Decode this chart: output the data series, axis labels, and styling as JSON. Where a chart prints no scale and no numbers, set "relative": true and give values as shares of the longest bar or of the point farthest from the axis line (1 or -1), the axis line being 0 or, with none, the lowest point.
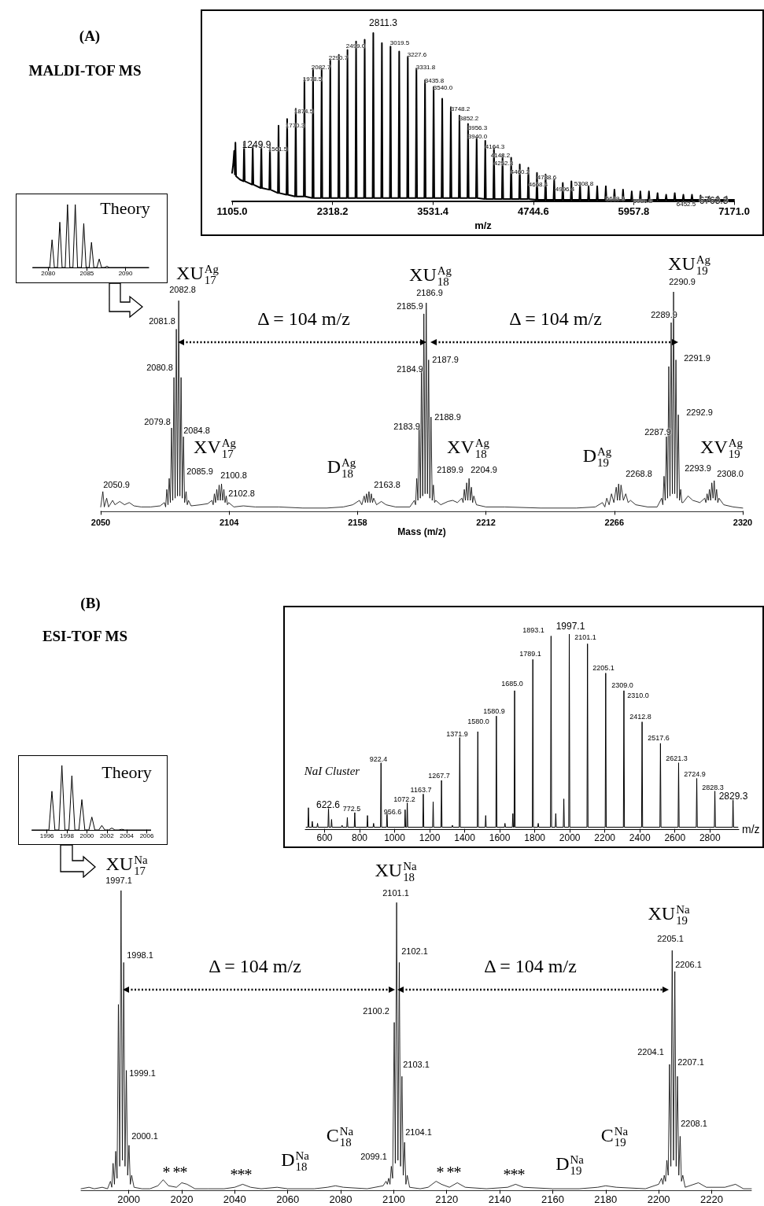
{
  "chart_data": [
    {
      "type": "line",
      "xlabel": "Mass (m/z)",
      "relative": true,
      "xlim": [
        2050,
        2320
      ],
      "xticks": [
        2050,
        2104,
        2158,
        2212,
        2266,
        2320
      ],
      "series": [
        {
          "color": "#000000",
          "x": [
            2050,
            2050.9,
            2051.5,
            2052.5,
            2053.3,
            2055,
            2056,
            2058,
            2060,
            2062,
            2064,
            2067,
            2071,
            2075,
            2076.8,
            2077.3,
            2077.8,
            2078.3,
            2078.8,
            2079.3,
            2079.8,
            2080.3,
            2080.8,
            2081.3,
            2081.8,
            2082.3,
            2082.8,
            2083.3,
            2083.8,
            2084.3,
            2084.8,
            2085.3,
            2085.9,
            2086.4,
            2086.9,
            2088,
            2092,
            2095,
            2096.8,
            2097.3,
            2097.8,
            2098.3,
            2098.8,
            2099.3,
            2099.8,
            2100.3,
            2100.8,
            2101.3,
            2101.8,
            2102.3,
            2102.8,
            2103.3,
            2103.8,
            2106,
            2110,
            2115,
            2125,
            2135,
            2145,
            2152,
            2156,
            2158.8,
            2159.8,
            2160.8,
            2161.3,
            2161.8,
            2162.3,
            2162.8,
            2163.3,
            2163.8,
            2164.3,
            2164.8,
            2166,
            2168,
            2170,
            2174,
            2180,
            2181.9,
            2182.4,
            2182.9,
            2183.4,
            2183.9,
            2184.4,
            2184.9,
            2185.4,
            2185.9,
            2186.4,
            2186.9,
            2187.4,
            2187.9,
            2188.4,
            2188.9,
            2189.4,
            2189.9,
            2190.4,
            2190.9,
            2193,
            2196,
            2198,
            2200,
            2201.9,
            2202.4,
            2202.9,
            2203.4,
            2203.9,
            2204.4,
            2204.9,
            2205.4,
            2205.9,
            2206.4,
            2206.9,
            2208,
            2212,
            2220,
            2235,
            2250,
            2258,
            2261,
            2262,
            2262.8,
            2263.8,
            2264.8,
            2265.8,
            2266.8,
            2267.3,
            2267.8,
            2268.3,
            2268.8,
            2269.8,
            2270.8,
            2271.8,
            2272.8,
            2275,
            2280,
            2284,
            2285.9,
            2286.4,
            2286.9,
            2287.4,
            2287.9,
            2288.4,
            2288.9,
            2289.4,
            2289.9,
            2290.4,
            2290.9,
            2291.4,
            2291.9,
            2292.4,
            2292.9,
            2293.4,
            2293.9,
            2294.4,
            2294.9,
            2297,
            2299,
            2302,
            2304,
            2304.5,
            2305,
            2305.5,
            2306,
            2306.5,
            2307,
            2307.5,
            2308,
            2308.5,
            2309,
            2309.5,
            2310,
            2312,
            2316,
            2320
          ],
          "values": [
            0.02,
            0.09,
            0.02,
            0.06,
            0.02,
            0.05,
            0.03,
            0.045,
            0.03,
            0.04,
            0.025,
            0.02,
            0.02,
            0.025,
            0.04,
            0.02,
            0.1,
            0.03,
            0.15,
            0.04,
            0.38,
            0.05,
            0.61,
            0.06,
            0.83,
            0.07,
            0.96,
            0.07,
            0.61,
            0.06,
            0.34,
            0.04,
            0.09,
            0.03,
            0.05,
            0.025,
            0.03,
            0.035,
            0.05,
            0.03,
            0.08,
            0.04,
            0.1,
            0.05,
            0.12,
            0.05,
            0.125,
            0.05,
            0.1,
            0.04,
            0.07,
            0.03,
            0.04,
            0.02,
            0.025,
            0.02,
            0.02,
            0.015,
            0.015,
            0.02,
            0.03,
            0.05,
            0.03,
            0.07,
            0.04,
            0.08,
            0.04,
            0.09,
            0.04,
            0.08,
            0.04,
            0.06,
            0.03,
            0.045,
            0.03,
            0.02,
            0.02,
            0.05,
            0.03,
            0.15,
            0.05,
            0.4,
            0.06,
            0.65,
            0.07,
            0.9,
            0.08,
            0.95,
            0.08,
            0.69,
            0.06,
            0.43,
            0.05,
            0.12,
            0.04,
            0.05,
            0.03,
            0.045,
            0.05,
            0.04,
            0.06,
            0.04,
            0.1,
            0.05,
            0.13,
            0.05,
            0.15,
            0.05,
            0.11,
            0.04,
            0.07,
            0.03,
            0.02,
            0.02,
            0.015,
            0.015,
            0.02,
            0.04,
            0.02,
            0.06,
            0.03,
            0.08,
            0.04,
            0.11,
            0.05,
            0.125,
            0.05,
            0.12,
            0.05,
            0.08,
            0.04,
            0.05,
            0.03,
            0.02,
            0.02,
            0.06,
            0.03,
            0.16,
            0.05,
            0.34,
            0.06,
            0.66,
            0.07,
            0.86,
            0.08,
            1.0,
            0.08,
            0.69,
            0.06,
            0.44,
            0.05,
            0.1,
            0.04,
            0.04,
            0.07,
            0.05,
            0.04,
            0.06,
            0.04,
            0.08,
            0.05,
            0.1,
            0.05,
            0.13,
            0.06,
            0.14,
            0.05,
            0.1,
            0.04,
            0.06,
            0.03,
            0.02,
            0.015
          ]
        }
      ],
      "annotations": [
        "XU$^{Ag}$$_{17}$",
        "XU$^{Ag}$$_{18}$",
        "XU$^{Ag}$$_{19}$",
        "Δ = 104 m/z",
        "Δ = 104 m/z",
        "XV$^{Ag}$$_{17}$",
        "D$^{Ag}$$_{18}$",
        "XV$^{Ag}$$_{18}$",
        "D$^{Ag}$$_{19}$",
        "XV$^{Ag}$$_{19}$",
        "2050.9",
        "2082.8",
        "2081.8",
        "2080.8",
        "2079.8",
        "2084.8",
        "2085.9",
        "2100.8",
        "2102.8",
        "2163.8",
        "2186.9",
        "2185.9",
        "2184.9",
        "2183.9",
        "2187.9",
        "2188.9",
        "2189.9",
        "2204.9",
        "2268.8",
        "2290.9",
        "2289.9",
        "2291.9",
        "2292.9",
        "2287.9",
        "2293.9",
        "2308.0",
        "(A)",
        "MALDI-TOF MS"
      ]
    },
    {
      "type": "line",
      "xlabel": "m/z",
      "relative": true,
      "xlim": [
        1105,
        7171
      ],
      "xticks": [
        {
          "value": 1105,
          "label": "1105.0"
        },
        {
          "value": 2318.2,
          "label": "2318.2"
        },
        {
          "value": 3531.4,
          "label": "3531.4"
        },
        {
          "value": 4744.6,
          "label": "4744.6"
        },
        {
          "value": 5957.8,
          "label": "5957.8"
        },
        {
          "value": 7171,
          "label": "7171.0"
        }
      ],
      "series": [
        {
          "color": "#000000",
          "x": [
            1105,
            1118,
            1130,
            1138,
            1145,
            1153,
            1200,
            1242,
            1250,
            1258,
            1346,
            1354,
            1362,
            1450,
            1458,
            1466,
            1554,
            1562,
            1570,
            1658,
            1666,
            1674,
            1762,
            1770,
            1778,
            1866,
            1874,
            1882,
            1971,
            1979,
            1987,
            2075,
            2083,
            2091,
            2179,
            2187,
            2195,
            2283,
            2291,
            2299,
            2387,
            2395,
            2403,
            2491,
            2499,
            2507,
            2595,
            2603,
            2611,
            2699,
            2707,
            2715,
            2803,
            2811,
            2819,
            2907,
            2915,
            2923,
            3011,
            3019,
            3027,
            3116,
            3124,
            3132,
            3220,
            3228,
            3236,
            3324,
            3332,
            3340,
            3428,
            3436,
            3444,
            3532,
            3540,
            3548,
            3636,
            3644,
            3652,
            3740,
            3748,
            3756,
            3844,
            3852,
            3860,
            3948,
            3956,
            3964,
            4052,
            4060,
            4068,
            4156,
            4164,
            4172,
            4261,
            4269,
            4277,
            4365,
            4373,
            4381,
            4469,
            4477,
            4485,
            4573,
            4581,
            4589,
            4677,
            4685,
            4693,
            4781,
            4789,
            4797,
            4885,
            4893,
            4901,
            4989,
            4997,
            5005,
            5093,
            5101,
            5109,
            5197,
            5205,
            5213,
            5301,
            5309,
            5317,
            5405,
            5413,
            5421,
            5509,
            5517,
            5525,
            5613,
            5621,
            5629,
            5717,
            5725,
            5733,
            5821,
            5829,
            5837,
            5926,
            5934,
            5942,
            6030,
            6038,
            6046,
            6134,
            6142,
            6150,
            6238,
            6246,
            6254,
            6342,
            6350,
            6358,
            6446,
            6454,
            6462,
            6550,
            6558,
            6566,
            6654,
            6662,
            6670,
            6758,
            6766,
            6774,
            6862,
            6870,
            6878,
            6967,
            6975,
            6983,
            7071,
            7079,
            7087,
            7171
          ],
          "values": [
            0.17,
            0.22,
            0.3,
            0.16,
            0.35,
            0.15,
            0.13,
            0.12,
            0.35,
            0.12,
            0.1,
            0.33,
            0.1,
            0.08,
            0.34,
            0.08,
            0.07,
            0.34,
            0.07,
            0.05,
            0.45,
            0.05,
            0.04,
            0.49,
            0.04,
            0.03,
            0.55,
            0.03,
            0.03,
            0.73,
            0.03,
            0.02,
            0.79,
            0.02,
            0.02,
            0.79,
            0.02,
            0.02,
            0.84,
            0.02,
            0.02,
            0.87,
            0.02,
            0.02,
            0.9,
            0.02,
            0.02,
            0.95,
            0.02,
            0.02,
            0.96,
            0.02,
            0.02,
            1.0,
            0.02,
            0.02,
            0.94,
            0.02,
            0.02,
            0.92,
            0.02,
            0.02,
            0.89,
            0.02,
            0.02,
            0.86,
            0.02,
            0.02,
            0.79,
            0.02,
            0.02,
            0.72,
            0.02,
            0.02,
            0.68,
            0.02,
            0.02,
            0.61,
            0.02,
            0.02,
            0.56,
            0.02,
            0.02,
            0.51,
            0.02,
            0.02,
            0.46,
            0.02,
            0.02,
            0.38,
            0.02,
            0.015,
            0.36,
            0.015,
            0.015,
            0.32,
            0.015,
            0.015,
            0.28,
            0.015,
            0.015,
            0.26,
            0.015,
            0.015,
            0.22,
            0.015,
            0.015,
            0.2,
            0.015,
            0.01,
            0.17,
            0.01,
            0.01,
            0.16,
            0.01,
            0.01,
            0.13,
            0.01,
            0.01,
            0.11,
            0.01,
            0.01,
            0.12,
            0.01,
            0.01,
            0.11,
            0.01,
            0.01,
            0.09,
            0.01,
            0.01,
            0.09,
            0.01,
            0.01,
            0.09,
            0.01,
            0.01,
            0.07,
            0.01,
            0.01,
            0.07,
            0.01,
            0.01,
            0.06,
            0.01,
            0.01,
            0.06,
            0.01,
            0.01,
            0.06,
            0.01,
            0.01,
            0.05,
            0.01,
            0.01,
            0.04,
            0.01,
            0.01,
            0.05,
            0.01,
            0.01,
            0.04,
            0.01,
            0.01,
            0.04,
            0.01,
            0.01,
            0.035,
            0.01,
            0.01,
            0.03,
            0.01,
            0.01,
            0.03,
            0.01,
            0.01,
            0.03,
            0.01,
            0.01
          ]
        }
      ],
      "annotations": [
        "1249.9",
        "1561.5",
        "1770.3",
        "1874.5",
        "1978.5",
        "2082.7",
        "2290.7",
        "2499.0",
        "2811.3",
        "3019.5",
        "3227.6",
        "3331.8",
        "3435.8",
        "3540.0",
        "3748.2",
        "3852.2",
        "3956.3",
        "3940.0",
        "4164.3",
        "4148.2",
        "4252.3",
        "4460.2",
        "4668.4",
        "4788.6",
        "4996.4",
        "5308.8",
        "5619.9",
        "5931.8",
        "6452.5",
        "6763.3"
      ]
    },
    {
      "type": "line",
      "title": "Theory",
      "relative": true,
      "xlim": [
        2078,
        2093
      ],
      "xticks": [
        2080,
        2085,
        2090
      ],
      "series": [
        {
          "color": "#000000",
          "x": [
            2078,
            2080.2,
            2080.5,
            2080.8,
            2081.2,
            2081.5,
            2081.8,
            2082.2,
            2082.5,
            2082.8,
            2083.2,
            2083.5,
            2083.8,
            2084.3,
            2084.6,
            2084.9,
            2085.3,
            2085.6,
            2085.9,
            2086.3,
            2086.6,
            2086.9,
            2087.3,
            2087.6,
            2087.9,
            2093
          ],
          "values": [
            0,
            0,
            0.44,
            0,
            0,
            0.72,
            0,
            0,
            1.0,
            0,
            0,
            1.0,
            0,
            0,
            0.7,
            0,
            0,
            0.4,
            0,
            0,
            0.135,
            0,
            0,
            0.02,
            0,
            0
          ]
        }
      ]
    },
    {
      "type": "line",
      "relative": true,
      "xlim": [
        1982,
        2235
      ],
      "xticks": [
        2000,
        2020,
        2040,
        2060,
        2080,
        2100,
        2120,
        2140,
        2160,
        2180,
        2200,
        2220
      ],
      "series": [
        {
          "color": "#000000",
          "x": [
            1982,
            1985,
            1987,
            1990,
            1992,
            1993.1,
            1993.6,
            1994.1,
            1994.6,
            1995.1,
            1995.6,
            1996.1,
            1996.6,
            1997.1,
            1997.6,
            1998.1,
            1998.6,
            1999.1,
            1999.6,
            2000.1,
            2000.6,
            2001.1,
            2002,
            2005,
            2008,
            2011,
            2013,
            2015,
            2018,
            2020,
            2022,
            2025,
            2030,
            2036,
            2040,
            2043,
            2046,
            2050,
            2056,
            2060,
            2070,
            2075,
            2078,
            2081,
            2090,
            2096,
            2097.1,
            2097.6,
            2098.1,
            2098.6,
            2099.1,
            2099.6,
            2100.2,
            2100.6,
            2101.1,
            2101.6,
            2102.1,
            2102.6,
            2103.1,
            2103.6,
            2104.1,
            2104.6,
            2105.1,
            2106,
            2110,
            2113,
            2116,
            2118,
            2121,
            2124,
            2127,
            2135,
            2143,
            2146,
            2149,
            2160,
            2170,
            2177,
            2180,
            2184,
            2195,
            2200,
            2201.1,
            2201.6,
            2202.1,
            2202.6,
            2203.1,
            2203.6,
            2204.1,
            2204.6,
            2205.1,
            2205.6,
            2206.1,
            2206.6,
            2207.1,
            2207.6,
            2208.1,
            2208.6,
            2209.1,
            2210,
            2215,
            2218,
            2225,
            2229,
            2232,
            2235
          ],
          "values": [
            0.005,
            0.01,
            0.005,
            0.01,
            0.005,
            0.03,
            0.01,
            0.09,
            0.02,
            0.13,
            0.04,
            0.62,
            0.08,
            1.0,
            0.1,
            0.76,
            0.08,
            0.4,
            0.05,
            0.15,
            0.02,
            0.05,
            0.01,
            0.005,
            0.005,
            0.015,
            0.035,
            0.015,
            0.01,
            0.025,
            0.02,
            0.005,
            0.005,
            0.005,
            0.01,
            0.02,
            0.01,
            0.005,
            0.01,
            0.005,
            0.005,
            0.01,
            0.015,
            0.01,
            0.005,
            0.015,
            0.03,
            0.02,
            0.04,
            0.02,
            0.08,
            0.04,
            0.56,
            0.09,
            0.96,
            0.1,
            0.76,
            0.08,
            0.38,
            0.05,
            0.16,
            0.02,
            0.05,
            0.01,
            0.005,
            0.01,
            0.03,
            0.02,
            0.01,
            0.025,
            0.01,
            0.005,
            0.01,
            0.02,
            0.01,
            0.005,
            0.005,
            0.01,
            0.015,
            0.01,
            0.005,
            0.02,
            0.04,
            0.02,
            0.05,
            0.03,
            0.1,
            0.05,
            0.42,
            0.08,
            0.8,
            0.1,
            0.73,
            0.08,
            0.38,
            0.05,
            0.18,
            0.03,
            0.05,
            0.01,
            0.025,
            0.01,
            0.01,
            0.02,
            0.005,
            0.005
          ]
        }
      ],
      "annotations": [
        "XU$^{Na}$$_{17}$",
        "XU$^{Na}$$_{18}$",
        "XU$^{Na}$$_{19}$",
        "Δ = 104 m/z",
        "Δ = 104 m/z",
        "D$^{Na}$$_{18}$",
        "C$^{Na}$$_{18}$",
        "D$^{Na}$$_{19}$",
        "C$^{Na}$$_{19}$",
        "* **",
        "***",
        "* **",
        "***",
        "1997.1",
        "1998.1",
        "1999.1",
        "2000.1",
        "2099.1",
        "2101.1",
        "2102.1",
        "2100.2",
        "2103.1",
        "2104.1",
        "2205.1",
        "2206.1",
        "2204.1",
        "2207.1",
        "2208.1",
        "(B)",
        "ESI-TOF MS"
      ]
    },
    {
      "type": "line",
      "xlabel": "m/z",
      "relative": true,
      "xlim": [
        490,
        2965
      ],
      "xticks": [
        600,
        800,
        1000,
        1200,
        1400,
        1600,
        1800,
        2000,
        2200,
        2400,
        2600,
        2800
      ],
      "series": [
        {
          "color": "#000000",
          "x": [
            495,
            505,
            508,
            511,
            527,
            530,
            533,
            557,
            560,
            563,
            619.6,
            622.6,
            625.6,
            637,
            640,
            643,
            697,
            700,
            703,
            727,
            730,
            733,
            769.5,
            772.5,
            775.5,
            842,
            845,
            848,
            877,
            880,
            883,
            919.4,
            922.4,
            925.4,
            953.6,
            956.6,
            959.6,
            1057,
            1060,
            1063,
            1069.2,
            1072.2,
            1075.2,
            1160.7,
            1163.7,
            1166.7,
            1217,
            1220,
            1223,
            1264.7,
            1267.7,
            1270.7,
            1327,
            1330,
            1333,
            1368.9,
            1371.9,
            1374.9,
            1472,
            1475,
            1478,
            1517,
            1520,
            1523,
            1577.9,
            1580.9,
            1583.9,
            1627,
            1630,
            1633,
            1672,
            1675,
            1678,
            1682,
            1685,
            1688,
            1786.1,
            1789.1,
            1792.1,
            1817,
            1820,
            1823,
            1890.1,
            1893.1,
            1896.1,
            1917,
            1920,
            1923,
            1963,
            1966,
            1969,
            1994.1,
            1997.1,
            2000.1,
            2098.1,
            2101.1,
            2104.1,
            2202.1,
            2205.1,
            2208.1,
            2306,
            2309,
            2312,
            2409.8,
            2412.8,
            2415.8,
            2514.6,
            2517.6,
            2520.6,
            2618.3,
            2621.3,
            2624.3,
            2721.9,
            2724.9,
            2727.9,
            2825.3,
            2828.3,
            2831.3,
            2929,
            2932,
            2935,
            2960
          ],
          "values": [
            0.01,
            0.01,
            0.11,
            0.01,
            0.01,
            0.04,
            0.01,
            0.01,
            0.03,
            0.01,
            0.01,
            0.11,
            0.01,
            0.01,
            0.05,
            0.01,
            0.01,
            0.02,
            0.01,
            0.01,
            0.06,
            0.01,
            0.01,
            0.085,
            0.01,
            0.01,
            0.07,
            0.01,
            0.01,
            0.03,
            0.01,
            0.01,
            0.34,
            0.01,
            0.01,
            0.09,
            0.01,
            0.01,
            0.1,
            0.01,
            0.01,
            0.135,
            0.01,
            0.01,
            0.18,
            0.01,
            0.01,
            0.14,
            0.01,
            0.01,
            0.25,
            0.01,
            0.01,
            0.02,
            0.01,
            0.01,
            0.47,
            0.01,
            0.01,
            0.5,
            0.01,
            0.01,
            0.07,
            0.01,
            0.01,
            0.58,
            0.01,
            0.01,
            0.03,
            0.01,
            0.01,
            0.08,
            0.01,
            0.01,
            0.71,
            0.01,
            0.01,
            0.87,
            0.01,
            0.01,
            0.03,
            0.01,
            0.01,
            0.99,
            0.01,
            0.01,
            0.08,
            0.01,
            0.01,
            0.155,
            0.01,
            0.01,
            1.0,
            0.01,
            0.01,
            0.95,
            0.01,
            0.01,
            0.8,
            0.01,
            0.01,
            0.71,
            0.01,
            0.01,
            0.55,
            0.01,
            0.01,
            0.44,
            0.01,
            0.01,
            0.34,
            0.01,
            0.01,
            0.26,
            0.01,
            0.01,
            0.195,
            0.01,
            0.01,
            0.15,
            0.01,
            0.01
          ]
        }
      ],
      "annotations": [
        "622.6",
        "772.5",
        "922.4",
        "956.6",
        "1072.2",
        "1163.7",
        "1267.7",
        "1371.9",
        "1580.0",
        "1580.9",
        "1685.0",
        "1789.1",
        "1893.1",
        "1997.1",
        "2101.1",
        "2205.1",
        "2309.0",
        "2310.0",
        "2412.8",
        "2517.6",
        "2621.3",
        "2724.9",
        "2828.3",
        "2829.3",
        "NaI Cluster"
      ]
    },
    {
      "type": "line",
      "title": "Theory",
      "relative": true,
      "xlim": [
        1994.5,
        2006.4
      ],
      "xticks": [
        1996,
        1998,
        2000,
        2002,
        2004,
        2006
      ],
      "series": [
        {
          "color": "#000000",
          "x": [
            1994.5,
            1996.2,
            1996.5,
            1996.8,
            1997.2,
            1997.5,
            1997.8,
            1998.2,
            1998.5,
            1998.8,
            1999.2,
            1999.5,
            1999.8,
            2000.2,
            2000.5,
            2000.8,
            2001.2,
            2001.5,
            2001.8,
            2002.2,
            2002.5,
            2002.8,
            2003.2,
            2003.5,
            2003.8,
            2006.4
          ],
          "values": [
            0,
            0,
            0.6,
            0,
            0,
            1.0,
            0,
            0,
            0.84,
            0,
            0,
            0.47,
            0,
            0,
            0.2,
            0,
            0,
            0.07,
            0,
            0,
            0.03,
            0,
            0,
            0.01,
            0,
            0
          ]
        }
      ]
    }
  ]
}
